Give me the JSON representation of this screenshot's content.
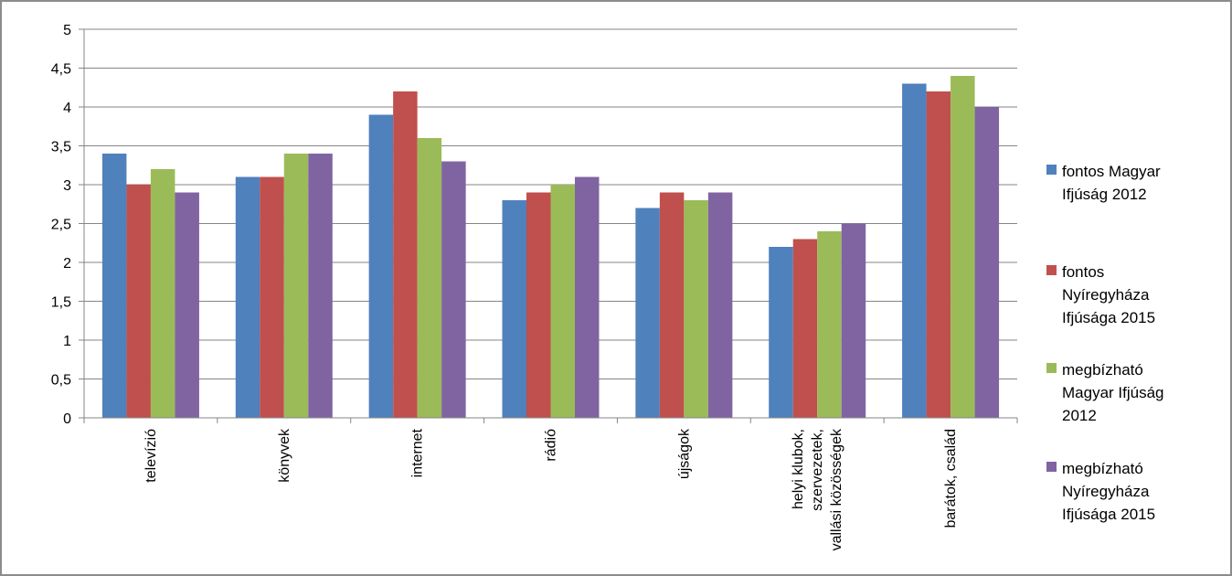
{
  "chart_data": {
    "type": "bar",
    "title": "",
    "xlabel": "",
    "ylabel": "",
    "ylim": [
      0,
      5
    ],
    "y_ticks": [
      "0",
      "0,5",
      "1",
      "1,5",
      "2",
      "2,5",
      "3",
      "3,5",
      "4",
      "4,5",
      "5"
    ],
    "grid": true,
    "legend_position": "right",
    "categories": [
      [
        "televízió"
      ],
      [
        "könyvek"
      ],
      [
        "internet"
      ],
      [
        "rádió"
      ],
      [
        "újságok"
      ],
      [
        "helyi klubok,",
        "szervezetek,",
        "vallási közösségek"
      ],
      [
        "barátok, család"
      ]
    ],
    "series": [
      {
        "name": [
          "fontos Magyar",
          "Ifjúság 2012"
        ],
        "color": "#4f81bd",
        "values": [
          3.4,
          3.1,
          3.9,
          2.8,
          2.7,
          2.2,
          4.3
        ]
      },
      {
        "name": [
          "fontos",
          "Nyíregyháza",
          "Ifjúsága 2015"
        ],
        "color": "#c0504d",
        "values": [
          3.0,
          3.1,
          4.2,
          2.9,
          2.9,
          2.3,
          4.2
        ]
      },
      {
        "name": [
          "megbízható",
          "Magyar Ifjúság",
          "2012"
        ],
        "color": "#9bbb59",
        "values": [
          3.2,
          3.4,
          3.6,
          3.0,
          2.8,
          2.4,
          4.4
        ]
      },
      {
        "name": [
          "megbízható",
          "Nyíregyháza",
          "Ifjúsága 2015"
        ],
        "color": "#8064a2",
        "values": [
          2.9,
          3.4,
          3.3,
          3.1,
          2.9,
          2.5,
          4.0
        ]
      }
    ]
  }
}
